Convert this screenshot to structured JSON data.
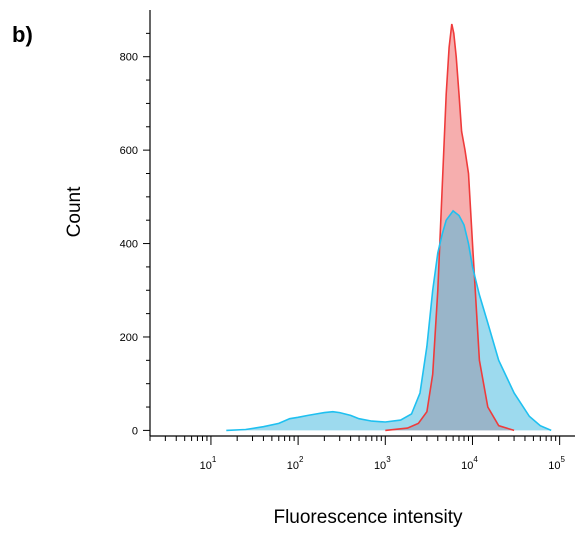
{
  "panel_label": "b)",
  "chart_data": {
    "type": "area",
    "xlabel": "Fluorescence intensity",
    "ylabel": "Count",
    "x_scale": "log",
    "xlim": [
      2,
      150000
    ],
    "ylim": [
      -12,
      900
    ],
    "x_tick_labels": [
      {
        "value": 10,
        "base": "10",
        "exp": "1"
      },
      {
        "value": 100,
        "base": "10",
        "exp": "2"
      },
      {
        "value": 1000,
        "base": "10",
        "exp": "3"
      },
      {
        "value": 10000,
        "base": "10",
        "exp": "4"
      },
      {
        "value": 100000,
        "base": "10",
        "exp": "5"
      }
    ],
    "y_ticks": [
      0,
      200,
      400,
      600,
      800
    ],
    "colors": {
      "red_fill": "#f5a0a0",
      "red_line": "#ef3b3b",
      "blue_fill": "#4dbbe0",
      "blue_line": "#1fc0f0"
    },
    "series": [
      {
        "color": "red",
        "x": [
          1000,
          1800,
          2400,
          3000,
          3500,
          4000,
          4500,
          5000,
          5400,
          5800,
          6100,
          6500,
          7000,
          7500,
          8200,
          9000,
          10000,
          12000,
          15000,
          20000,
          30000
        ],
        "y": [
          0,
          5,
          15,
          40,
          120,
          300,
          520,
          720,
          820,
          870,
          850,
          800,
          720,
          640,
          600,
          550,
          400,
          150,
          50,
          10,
          0
        ]
      },
      {
        "color": "blue",
        "x": [
          15,
          25,
          40,
          60,
          80,
          100,
          130,
          160,
          200,
          250,
          300,
          400,
          500,
          700,
          1000,
          1500,
          2000,
          2500,
          3000,
          3500,
          4000,
          4500,
          5000,
          6000,
          7000,
          8000,
          9000,
          10000,
          12000,
          15000,
          20000,
          30000,
          45000,
          60000,
          80000
        ],
        "y": [
          0,
          2,
          8,
          15,
          25,
          28,
          32,
          35,
          38,
          40,
          38,
          32,
          25,
          20,
          18,
          22,
          35,
          80,
          180,
          300,
          380,
          420,
          450,
          470,
          460,
          440,
          400,
          350,
          290,
          230,
          150,
          80,
          30,
          10,
          0
        ]
      }
    ]
  }
}
